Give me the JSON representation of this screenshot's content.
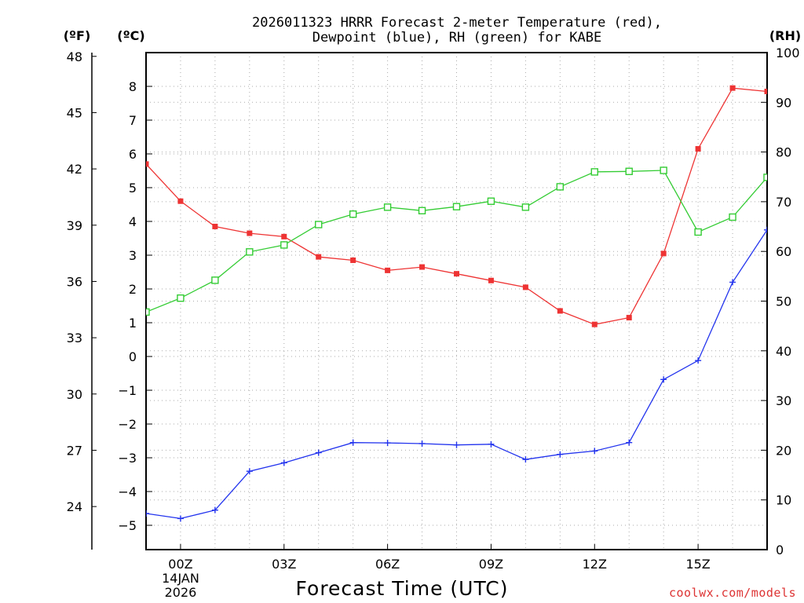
{
  "chart_data": {
    "type": "line",
    "title_lines": [
      "2026011323 HRRR Forecast 2-meter Temperature (red),",
      "Dewpoint (blue), RH (green) for KABE"
    ],
    "xlabel": "Forecast Time (UTC)",
    "credit": "coolwx.com/models",
    "units": {
      "fahrenheit": "(ºF)",
      "celsius": "(ºC)",
      "rh": "(RH)"
    },
    "x_hours": [
      -1,
      0,
      1,
      2,
      3,
      4,
      5,
      6,
      7,
      8,
      9,
      10,
      11,
      12,
      13,
      14,
      15,
      16,
      17
    ],
    "xlim": [
      -1,
      17
    ],
    "x_ticks": [
      {
        "hour": 0,
        "label": "00Z",
        "sub": [
          "14JAN",
          "2026"
        ]
      },
      {
        "hour": 3,
        "label": "03Z",
        "sub": []
      },
      {
        "hour": 6,
        "label": "06Z",
        "sub": []
      },
      {
        "hour": 9,
        "label": "09Z",
        "sub": []
      },
      {
        "hour": 12,
        "label": "12Z",
        "sub": []
      },
      {
        "hour": 15,
        "label": "15Z",
        "sub": []
      }
    ],
    "celsius_axis": {
      "ylim": [
        -5.72,
        9.0
      ],
      "ticks": [
        -5,
        -4,
        -3,
        -2,
        -1,
        0,
        1,
        2,
        3,
        4,
        5,
        6,
        7,
        8
      ],
      "labels": [
        "−5",
        "−4",
        "−3",
        "−2",
        "−1",
        "0",
        "1",
        "2",
        "3",
        "4",
        "5",
        "6",
        "7",
        "8"
      ]
    },
    "fahrenheit_axis": {
      "ticks": [
        24,
        27,
        30,
        33,
        36,
        39,
        42,
        45,
        48
      ],
      "labels": [
        "24",
        "27",
        "30",
        "33",
        "36",
        "39",
        "42",
        "45",
        "48"
      ]
    },
    "rh_axis": {
      "ylim": [
        0,
        100
      ],
      "ticks": [
        0,
        10,
        20,
        30,
        40,
        50,
        60,
        70,
        80,
        90,
        100
      ],
      "labels": [
        "0",
        "10",
        "20",
        "30",
        "40",
        "50",
        "60",
        "70",
        "80",
        "90",
        "100"
      ]
    },
    "series": [
      {
        "name": "Temperature",
        "color": "#ee3333",
        "marker": "filled-square",
        "axis": "celsius",
        "values": [
          5.7,
          4.6,
          3.85,
          3.65,
          3.55,
          2.95,
          2.85,
          2.55,
          2.65,
          2.45,
          2.25,
          2.05,
          1.35,
          0.95,
          1.15,
          3.05,
          6.15,
          7.95,
          7.85
        ]
      },
      {
        "name": "Dewpoint",
        "color": "#2233ee",
        "marker": "plus",
        "axis": "celsius",
        "values": [
          -4.65,
          -4.8,
          -4.55,
          -3.4,
          -3.15,
          -2.85,
          -2.55,
          -2.56,
          -2.58,
          -2.62,
          -2.6,
          -3.05,
          -2.9,
          -2.8,
          -2.55,
          -0.68,
          -0.12,
          2.2,
          3.75
        ]
      },
      {
        "name": "RH",
        "color": "#33cc33",
        "marker": "open-square",
        "axis": "rh",
        "values": [
          47.8,
          50.6,
          54.2,
          59.9,
          61.3,
          65.4,
          67.5,
          68.9,
          68.2,
          69.0,
          70.1,
          68.9,
          73.0,
          76.0,
          76.1,
          76.3,
          63.9,
          66.9,
          74.9
        ]
      }
    ]
  }
}
